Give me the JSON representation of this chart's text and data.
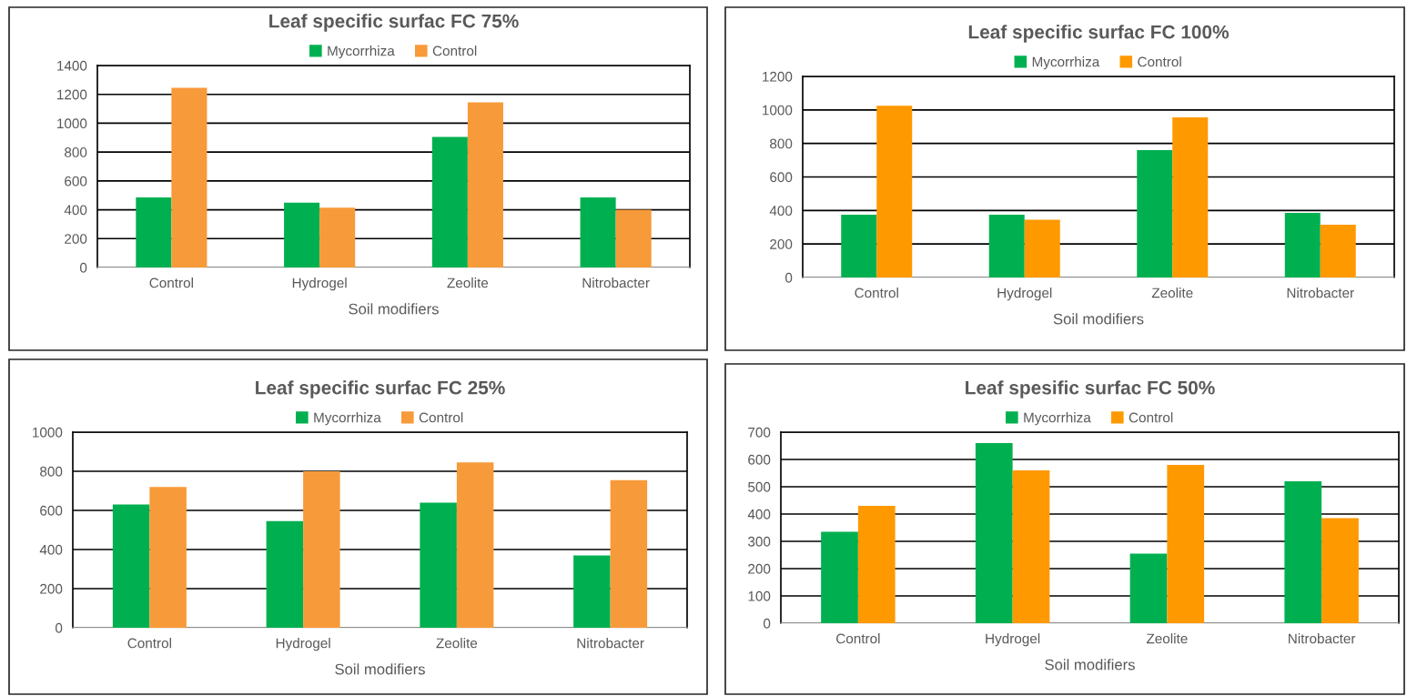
{
  "chart_data": [
    {
      "type": "bar",
      "title": "Leaf specific surfac FC 75%",
      "xlabel": "Soil modifiers",
      "categories": [
        "Control",
        "Hydrogel",
        "Zeolite",
        "Nitrobacter"
      ],
      "series": [
        {
          "name": "Mycorrhiza",
          "color": "#00b050",
          "values": [
            485,
            450,
            905,
            485
          ]
        },
        {
          "name": "Control",
          "color": "#f79a3a",
          "values": [
            1245,
            415,
            1145,
            400
          ]
        }
      ],
      "ylim": [
        0,
        1400
      ],
      "yticks": [
        0,
        200,
        400,
        600,
        800,
        1000,
        1200,
        1400
      ],
      "grid": "y",
      "legend": "top"
    },
    {
      "type": "bar",
      "title": "Leaf specific surfac FC 100%",
      "xlabel": "Soil modifiers",
      "categories": [
        "Control",
        "Hydrogel",
        "Zeolite",
        "Nitrobacter"
      ],
      "series": [
        {
          "name": "Mycorrhiza",
          "color": "#00b050",
          "values": [
            375,
            375,
            760,
            385
          ]
        },
        {
          "name": "Control",
          "color": "#ff9900",
          "values": [
            1025,
            345,
            955,
            315
          ]
        }
      ],
      "ylim": [
        0,
        1200
      ],
      "yticks": [
        0,
        200,
        400,
        600,
        800,
        1000,
        1200
      ],
      "grid": "y",
      "legend": "top"
    },
    {
      "type": "bar",
      "title": "Leaf specific surfac FC 25%",
      "xlabel": "Soil modifiers",
      "categories": [
        "Control",
        "Hydrogel",
        "Zeolite",
        "Nitrobacter"
      ],
      "series": [
        {
          "name": "Mycorrhiza",
          "color": "#00b050",
          "values": [
            630,
            545,
            640,
            370
          ]
        },
        {
          "name": "Control",
          "color": "#f79a3a",
          "values": [
            720,
            800,
            845,
            755
          ]
        }
      ],
      "ylim": [
        0,
        1000
      ],
      "yticks": [
        0,
        200,
        400,
        600,
        800,
        1000
      ],
      "grid": "y",
      "legend": "top"
    },
    {
      "type": "bar",
      "title": "Leaf spesific surfac FC 50%",
      "xlabel": "Soil modifiers",
      "categories": [
        "Control",
        "Hydrogel",
        "Zeolite",
        "Nitrobacter"
      ],
      "series": [
        {
          "name": "Mycorrhiza",
          "color": "#00b050",
          "values": [
            335,
            660,
            255,
            520
          ]
        },
        {
          "name": "Control",
          "color": "#ff9900",
          "values": [
            430,
            560,
            580,
            385
          ]
        }
      ],
      "ylim": [
        0,
        700
      ],
      "yticks": [
        0,
        100,
        200,
        300,
        400,
        500,
        600,
        700
      ],
      "grid": "y",
      "legend": "top"
    }
  ]
}
